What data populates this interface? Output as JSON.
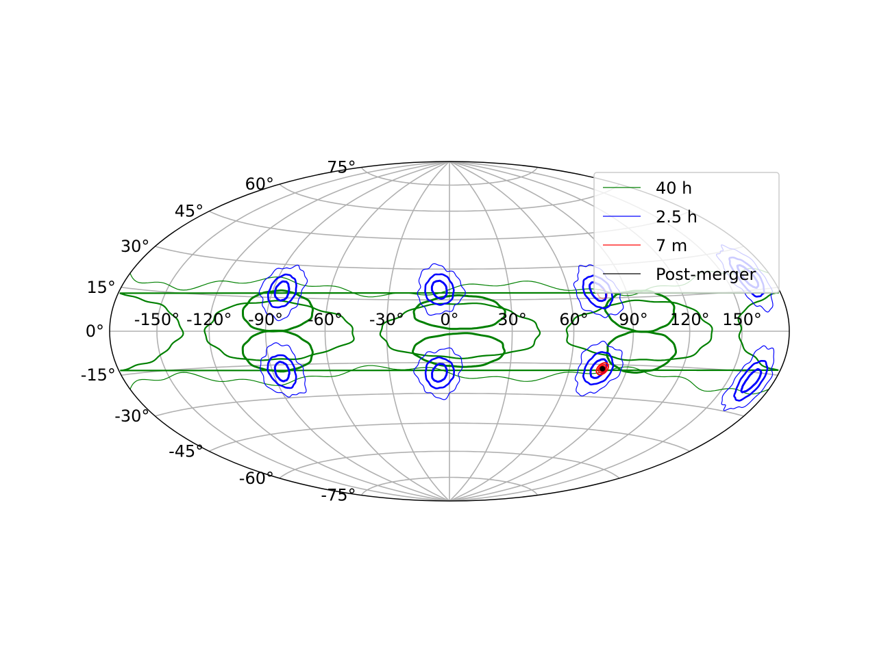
{
  "chart_data": {
    "type": "map",
    "projection": "hammer-aitoff",
    "title": "",
    "grid": true,
    "legend_location": "upper-right",
    "x_ticks": [
      "-150°",
      "-120°",
      "-90°",
      "-60°",
      "-30°",
      "0°",
      "30°",
      "60°",
      "90°",
      "120°",
      "150°"
    ],
    "y_ticks": [
      "-75°",
      "-60°",
      "-45°",
      "-30°",
      "-15°",
      "0°",
      "15°",
      "30°",
      "45°",
      "60°",
      "75°"
    ],
    "series": [
      {
        "name": "40 h",
        "color": "#008000",
        "description": "broad sky-localization contours"
      },
      {
        "name": "2.5 h",
        "color": "#0000ff",
        "description": "intermediate localization islands"
      },
      {
        "name": "7 m",
        "color": "#ff0000",
        "description": "tight localization near source"
      },
      {
        "name": "Post-merger",
        "color": "#000000",
        "description": "final localization point"
      }
    ],
    "source_point": {
      "lon": 77,
      "lat": -17
    },
    "blue_islands": [
      {
        "lon": -85,
        "lat": 18
      },
      {
        "lon": -85,
        "lat": -18
      },
      {
        "lon": -5,
        "lat": 20
      },
      {
        "lon": -5,
        "lat": -20
      },
      {
        "lon": 75,
        "lat": 18
      },
      {
        "lon": 75,
        "lat": -17
      },
      {
        "lon": 165,
        "lat": 20
      },
      {
        "lon": 165,
        "lat": -18
      }
    ],
    "green_lobes": [
      {
        "lon": -85,
        "lat": 9,
        "spread_lon": 18,
        "spread_lat": 9
      },
      {
        "lon": -85,
        "lat": -9,
        "spread_lon": 18,
        "spread_lat": 9
      },
      {
        "lon": 5,
        "lat": 9,
        "spread_lon": 22,
        "spread_lat": 8
      },
      {
        "lon": 5,
        "lat": -9,
        "spread_lon": 22,
        "spread_lat": 8
      },
      {
        "lon": 95,
        "lat": 9,
        "spread_lon": 18,
        "spread_lat": 9
      },
      {
        "lon": 95,
        "lat": -9,
        "spread_lon": 18,
        "spread_lat": 9
      }
    ]
  },
  "legend": {
    "items": [
      {
        "label": "40 h",
        "color": "#008000"
      },
      {
        "label": "2.5 h",
        "color": "#0000ff"
      },
      {
        "label": "7 m",
        "color": "#ff0000"
      },
      {
        "label": "Post-merger",
        "color": "#000000"
      }
    ]
  }
}
